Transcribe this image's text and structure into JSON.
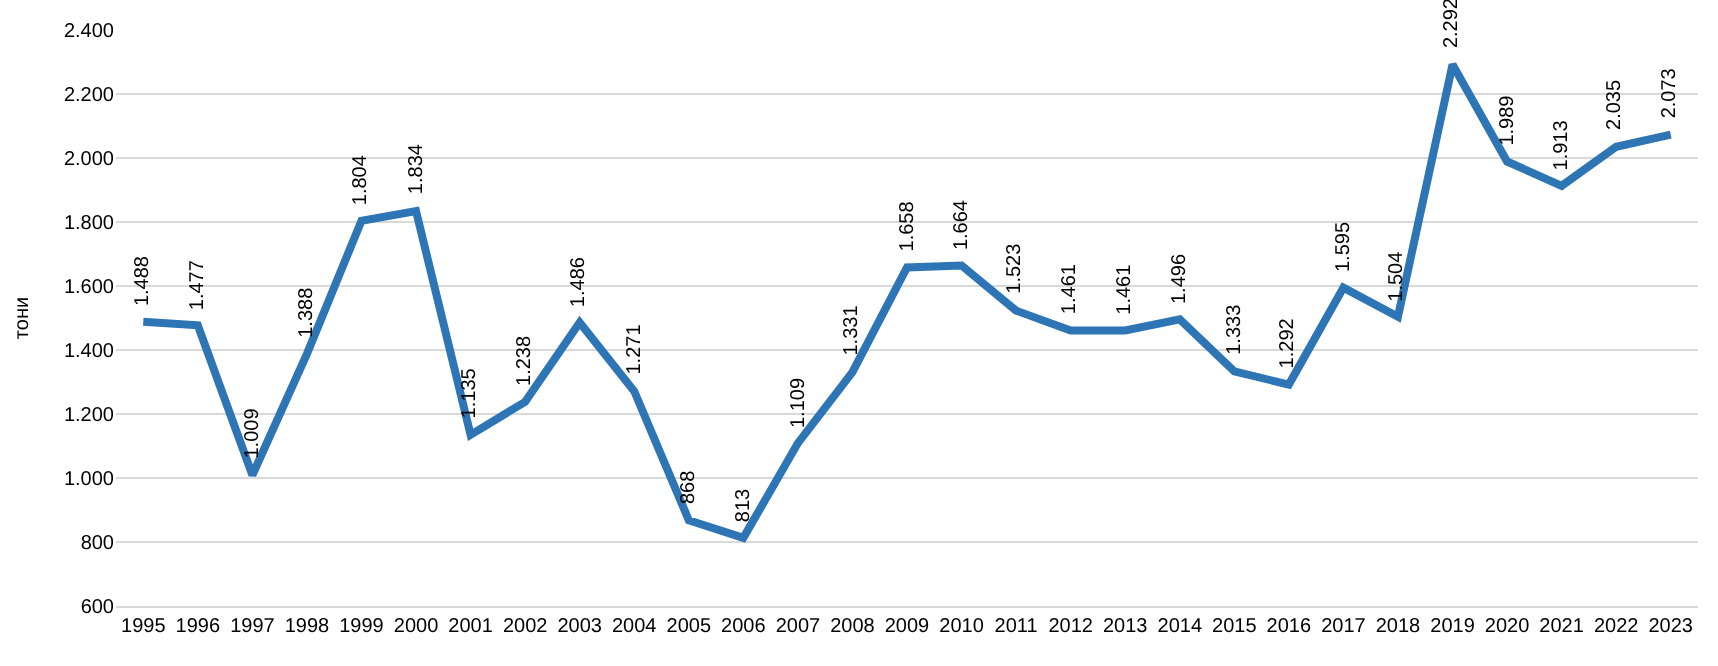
{
  "chart_data": {
    "type": "line",
    "ylabel": "тони",
    "categories": [
      "1995",
      "1996",
      "1997",
      "1998",
      "1999",
      "2000",
      "2001",
      "2002",
      "2003",
      "2004",
      "2005",
      "2006",
      "2007",
      "2008",
      "2009",
      "2010",
      "2011",
      "2012",
      "2013",
      "2014",
      "2015",
      "2016",
      "2017",
      "2018",
      "2019",
      "2020",
      "2021",
      "2022",
      "2023"
    ],
    "values": [
      1488,
      1477,
      1009,
      1388,
      1804,
      1834,
      1135,
      1238,
      1486,
      1271,
      868,
      813,
      1109,
      1331,
      1658,
      1664,
      1523,
      1461,
      1461,
      1496,
      1333,
      1292,
      1595,
      1504,
      2292,
      1989,
      1913,
      2035,
      2073
    ],
    "value_labels": [
      "1.488",
      "1.477",
      "1.009",
      "1.388",
      "1.804",
      "1.834",
      "1.135",
      "1.238",
      "1.486",
      "1.271",
      "868",
      "813",
      "1.109",
      "1.331",
      "1.658",
      "1.664",
      "1.523",
      "1.461",
      "1.461",
      "1.496",
      "1.333",
      "1.292",
      "1.595",
      "1.504",
      "2.292",
      "1.989",
      "1.913",
      "2.035",
      "2.073"
    ],
    "color": "#2e75b6",
    "ylim": [
      600,
      2400
    ],
    "yticks": [
      {
        "value": 600,
        "label": "600"
      },
      {
        "value": 800,
        "label": "800"
      },
      {
        "value": 1000,
        "label": "1.000"
      },
      {
        "value": 1200,
        "label": "1.200"
      },
      {
        "value": 1400,
        "label": "1.400"
      },
      {
        "value": 1600,
        "label": "1.600"
      },
      {
        "value": 1800,
        "label": "1.800"
      },
      {
        "value": 2000,
        "label": "2.000"
      },
      {
        "value": 2200,
        "label": "2.200"
      },
      {
        "value": 2400,
        "label": "2.400"
      }
    ],
    "grid": "y",
    "marker": "none",
    "line_style": "solid",
    "legend": false
  }
}
